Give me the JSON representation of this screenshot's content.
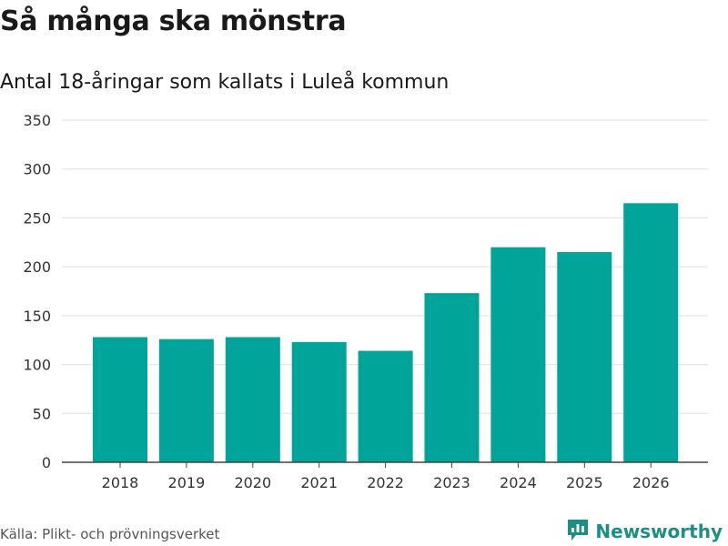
{
  "header": {
    "title": "Så många ska mönstra",
    "subtitle": "Antal 18-åringar som kallats i Luleå kommun"
  },
  "footer": {
    "source": "Källa: Plikt- och prövningsverket",
    "brand": "Newsworthy"
  },
  "colors": {
    "bar": "#00A499",
    "grid": "#e0e0e0",
    "axis": "#444444",
    "brand": "#1b8f86"
  },
  "chart_data": {
    "type": "bar",
    "title": "Så många ska mönstra",
    "subtitle": "Antal 18-åringar som kallats i Luleå kommun",
    "categories": [
      "2018",
      "2019",
      "2020",
      "2021",
      "2022",
      "2023",
      "2024",
      "2025",
      "2026"
    ],
    "values": [
      128,
      126,
      128,
      123,
      114,
      173,
      220,
      215,
      265
    ],
    "yticks": [
      0,
      50,
      100,
      150,
      200,
      250,
      300,
      350
    ],
    "ylim": [
      0,
      350
    ],
    "xlabel": "",
    "ylabel": "",
    "grid": true,
    "legend": "none"
  }
}
